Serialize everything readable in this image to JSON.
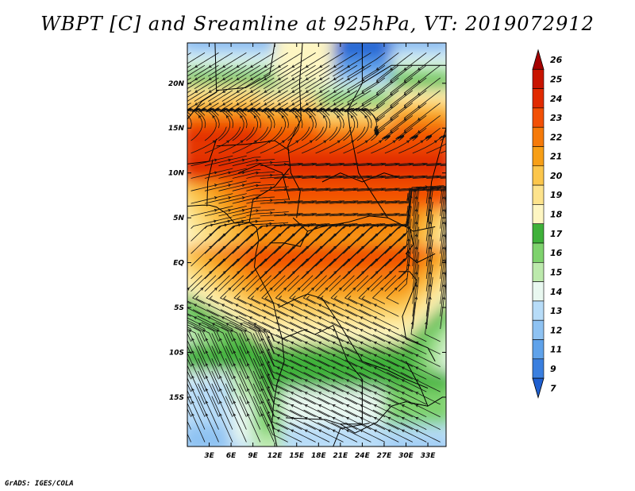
{
  "title": "WBPT [C] and Sreamline at 925hPa, VT: 2019072912",
  "credit": "GrADS: IGES/COLA",
  "chart_data": {
    "type": "heatmap",
    "title": "WBPT [C] and Sreamline at 925hPa, VT: 2019072912",
    "variable": "WBPT [C]",
    "overlay": "Sreamline",
    "level": "925hPa",
    "valid_time": "2019072912",
    "x_range": [
      0,
      35.5
    ],
    "y_range": [
      -20.5,
      24.5
    ],
    "x_ticks": [
      {
        "value": 3,
        "label": "3E"
      },
      {
        "value": 6,
        "label": "6E"
      },
      {
        "value": 9,
        "label": "9E"
      },
      {
        "value": 12,
        "label": "12E"
      },
      {
        "value": 15,
        "label": "15E"
      },
      {
        "value": 18,
        "label": "18E"
      },
      {
        "value": 21,
        "label": "21E"
      },
      {
        "value": 24,
        "label": "24E"
      },
      {
        "value": 27,
        "label": "27E"
      },
      {
        "value": 30,
        "label": "30E"
      },
      {
        "value": 33,
        "label": "33E"
      }
    ],
    "y_ticks": [
      {
        "value": 20,
        "label": "20N"
      },
      {
        "value": 15,
        "label": "15N"
      },
      {
        "value": 10,
        "label": "10N"
      },
      {
        "value": 5,
        "label": "5N"
      },
      {
        "value": 0,
        "label": "EQ"
      },
      {
        "value": -5,
        "label": "5S"
      },
      {
        "value": -10,
        "label": "10S"
      },
      {
        "value": -15,
        "label": "15S"
      }
    ],
    "colorbar": {
      "labels": [
        "26",
        "25",
        "24",
        "23",
        "22",
        "21",
        "20",
        "19",
        "18",
        "17",
        "16",
        "15",
        "14",
        "13",
        "12",
        "11",
        "9",
        "7"
      ],
      "colors": [
        "#a50000",
        "#c81400",
        "#e12a00",
        "#f25005",
        "#f57a0a",
        "#f79f17",
        "#fbc64c",
        "#fde38c",
        "#fef6c2",
        "#3fb13a",
        "#7ed26d",
        "#bce9ac",
        "#e9f8f0",
        "#b7dcf8",
        "#8ec2f2",
        "#5fa2ea",
        "#3a7fdf",
        "#1e5fd0"
      ]
    }
  }
}
